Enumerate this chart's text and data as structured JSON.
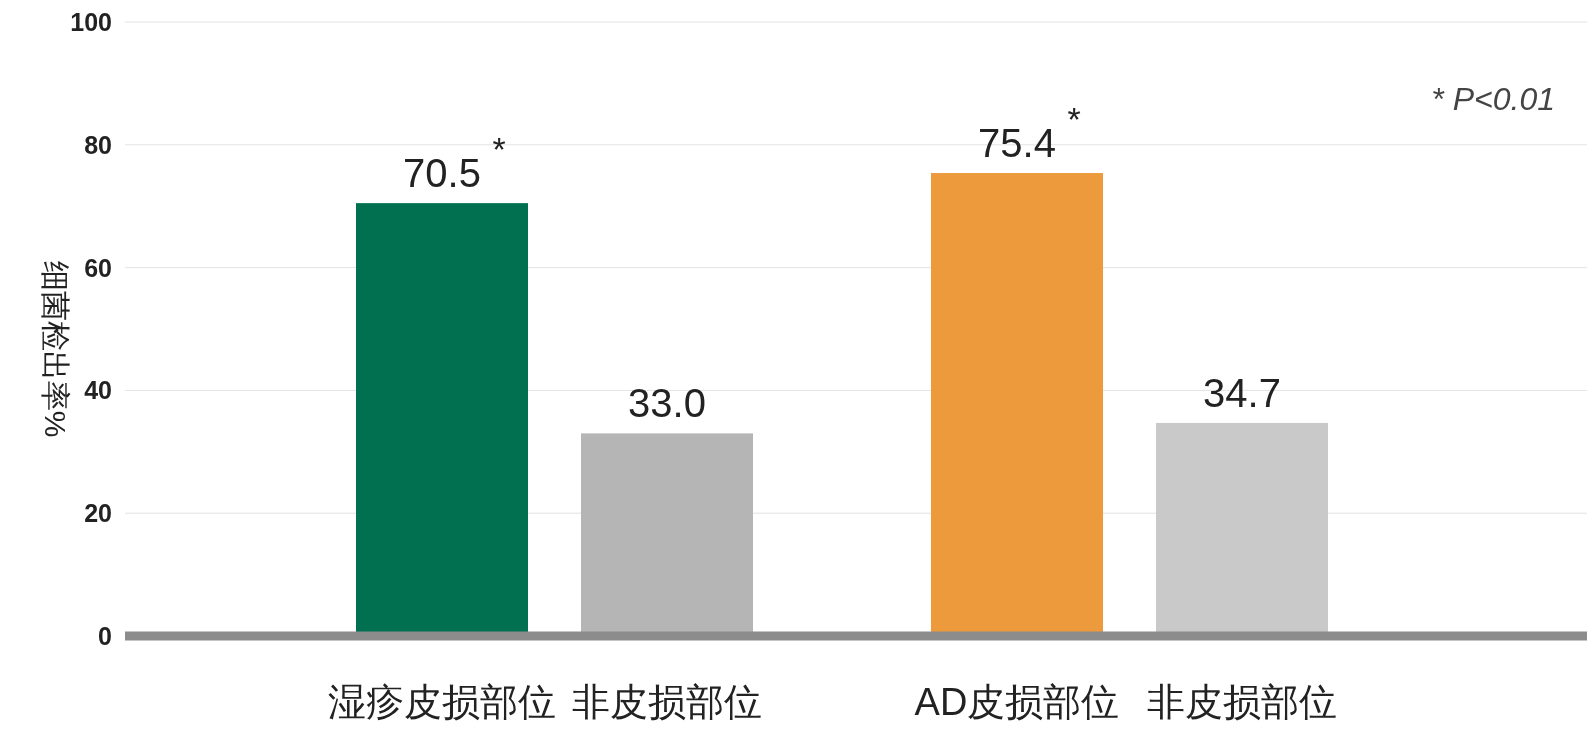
{
  "chart_data": {
    "type": "bar",
    "ylabel": "细菌检出率%",
    "categories": [
      "湿疹皮损部位",
      "非皮损部位",
      "AD皮损部位",
      "非皮损部位"
    ],
    "values": [
      70.5,
      33.0,
      75.4,
      34.7
    ],
    "colors": [
      "#007050",
      "#b5b5b5",
      "#ec9a3c",
      "#c9c9c9"
    ],
    "value_labels": [
      "70.5",
      "33.0",
      "75.4",
      "34.7"
    ],
    "ylim": [
      0,
      100
    ],
    "yticks": [
      0,
      20,
      40,
      60,
      80,
      100
    ],
    "grid": "y",
    "annotations": [
      {
        "text": "*",
        "x": "湿疹皮损部位",
        "y": 70.5
      },
      {
        "text": "*",
        "x": "AD皮损部位",
        "y": 75.4
      },
      "* P<0.01"
    ]
  }
}
